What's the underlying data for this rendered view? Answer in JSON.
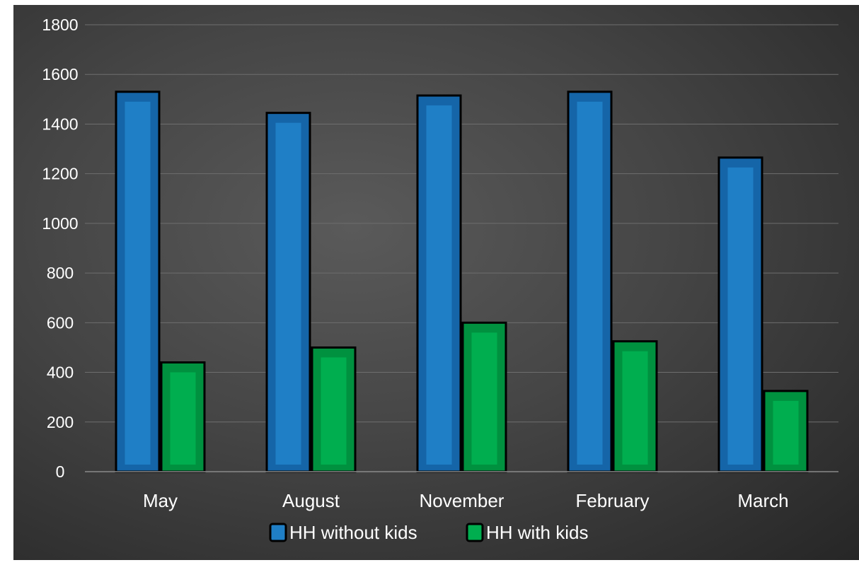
{
  "chart_data": {
    "type": "bar",
    "categories": [
      "May",
      "August",
      "November",
      "February",
      "March"
    ],
    "series": [
      {
        "name": "HH without kids",
        "values": [
          1530,
          1445,
          1515,
          1530,
          1265
        ],
        "color": "#1f7fc6",
        "border": "#1565a8"
      },
      {
        "name": "HH with kids",
        "values": [
          440,
          500,
          600,
          525,
          325
        ],
        "color": "#00ae4f",
        "border": "#00913f"
      }
    ],
    "ylim": [
      0,
      1800
    ],
    "yticks": [
      0,
      200,
      400,
      600,
      800,
      1000,
      1200,
      1400,
      1600,
      1800
    ],
    "grid": true,
    "legend": "bottom",
    "background": "#454545",
    "text_color": "#ffffff"
  }
}
